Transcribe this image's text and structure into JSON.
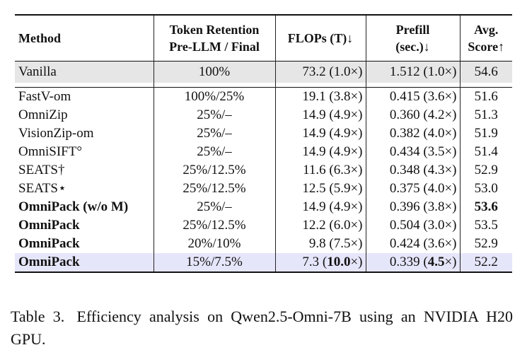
{
  "table": {
    "headers": {
      "method": "Method",
      "retention_line1": "Token Retention",
      "retention_line2": "Pre-LLM / Final",
      "flops": "FLOPs (T)↓",
      "prefill_line1": "Prefill",
      "prefill_line2": "(sec.)↓",
      "score_line1": "Avg.",
      "score_line2": "Score↑"
    },
    "vanilla": {
      "method": "Vanilla",
      "retention": "100%",
      "flops": "73.2 (1.0×)",
      "prefill": "1.512 (1.0×)",
      "score": "54.6"
    },
    "rows": [
      {
        "method": "FastV-om",
        "retention": "100%/25%",
        "flops": "19.1 (3.8×)",
        "prefill": "0.415 (3.6×)",
        "score": "51.6"
      },
      {
        "method": "OmniZip",
        "retention": "25%/–",
        "flops": "14.9 (4.9×)",
        "prefill": "0.360 (4.2×)",
        "score": "51.3"
      },
      {
        "method": "VisionZip-om",
        "retention": "25%/–",
        "flops": "14.9 (4.9×)",
        "prefill": "0.382 (4.0×)",
        "score": "51.9"
      },
      {
        "method": "OmniSIFT°",
        "retention": "25%/–",
        "flops": "14.9 (4.9×)",
        "prefill": "0.434 (3.5×)",
        "score": "51.4"
      },
      {
        "method": "SEATS†",
        "retention": "25%/12.5%",
        "flops": "11.6 (6.3×)",
        "prefill": "0.348 (4.3×)",
        "score": "52.9"
      },
      {
        "method": "SEATS⋆",
        "retention": "25%/12.5%",
        "flops": "12.5 (5.9×)",
        "prefill": "0.375 (4.0×)",
        "score": "53.0"
      },
      {
        "method": "OmniPack (w/o M)",
        "retention": "25%/–",
        "flops": "14.9 (4.9×)",
        "prefill": "0.396 (3.8×)",
        "score": "53.6"
      },
      {
        "method": "OmniPack",
        "retention": "25%/12.5%",
        "flops": "12.2 (6.0×)",
        "prefill": "0.504 (3.0×)",
        "score": "53.5"
      },
      {
        "method": "OmniPack",
        "retention": "20%/10%",
        "flops": "9.8 (7.5×)",
        "prefill": "0.424 (3.6×)",
        "score": "52.9"
      }
    ],
    "final_row": {
      "method": "OmniPack",
      "retention": "15%/7.5%",
      "flops_value": "7.3",
      "flops_speedup": "10.0",
      "prefill_value": "0.339",
      "prefill_speedup": "4.5",
      "x_suffix": "×)"
    }
  },
  "caption": {
    "label": "Table 3.",
    "text": "Efficiency analysis on Qwen2.5-Omni-7B using an NVIDIA H20 GPU."
  }
}
